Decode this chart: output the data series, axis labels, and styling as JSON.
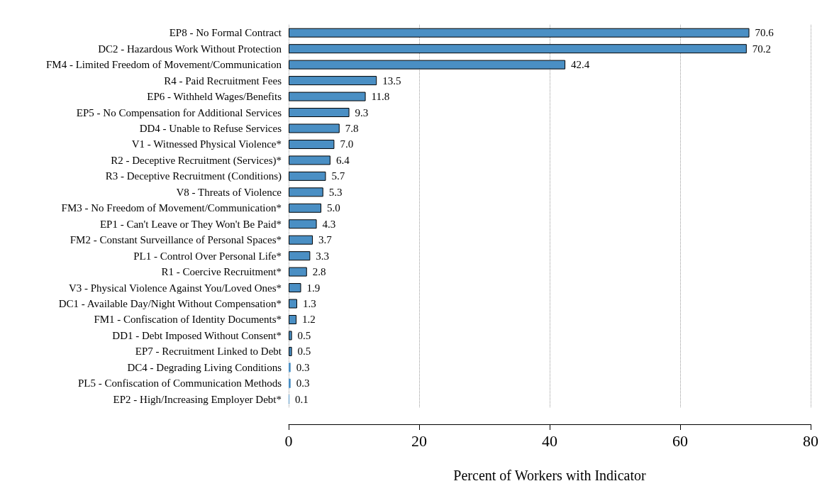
{
  "chart_data": {
    "type": "bar",
    "orientation": "horizontal",
    "xlabel": "Percent of Workers with Indicator",
    "categories": [
      "EP8 - No Formal Contract",
      "DC2 - Hazardous Work Without Protection",
      "FM4 - Limited Freedom of Movement/Communication",
      "R4 - Paid Recruitment Fees",
      "EP6 - Withheld Wages/Benefits",
      "EP5 - No Compensation for Additional Services",
      "DD4 - Unable to Refuse Services",
      "V1 - Witnessed Physical Violence*",
      "R2 - Deceptive Recruitment (Services)*",
      "R3 - Deceptive Recruitment (Conditions)",
      "V8 - Threats of Violence",
      "FM3 - No Freedom of Movement/Communication*",
      "EP1 - Can't Leave or They Won't Be Paid*",
      "FM2 - Constant Surveillance of Personal Spaces*",
      "PL1 - Control Over Personal Life*",
      "R1 - Coercive Recruitment*",
      "V3 - Physical Violence Against You/Loved Ones*",
      "DC1 - Available Day/Night Without Compensation*",
      "FM1 - Confiscation of Identity Documents*",
      "DD1 - Debt Imposed Without Consent*",
      "EP7 - Recruitment Linked to Debt",
      "DC4 - Degrading Living Conditions",
      "PL5 - Confiscation of Communication Methods",
      "EP2 - High/Increasing Employer Debt*"
    ],
    "values": [
      70.6,
      70.2,
      42.4,
      13.5,
      11.8,
      9.3,
      7.8,
      7.0,
      6.4,
      5.7,
      5.3,
      5.0,
      4.3,
      3.7,
      3.3,
      2.8,
      1.9,
      1.3,
      1.2,
      0.5,
      0.5,
      0.3,
      0.3,
      0.1
    ],
    "value_labels": [
      "70.6",
      "70.2",
      "42.4",
      "13.5",
      "11.8",
      "9.3",
      "7.8",
      "7.0",
      "6.4",
      "5.7",
      "5.3",
      "5.0",
      "4.3",
      "3.7",
      "3.3",
      "2.8",
      "1.9",
      "1.3",
      "1.2",
      "0.5",
      "0.5",
      "0.3",
      "0.3",
      "0.1"
    ],
    "color": "#4a8fc4",
    "xlim": [
      0,
      80
    ],
    "xticks": [
      0,
      20,
      40,
      60,
      80
    ],
    "grid": "x"
  }
}
